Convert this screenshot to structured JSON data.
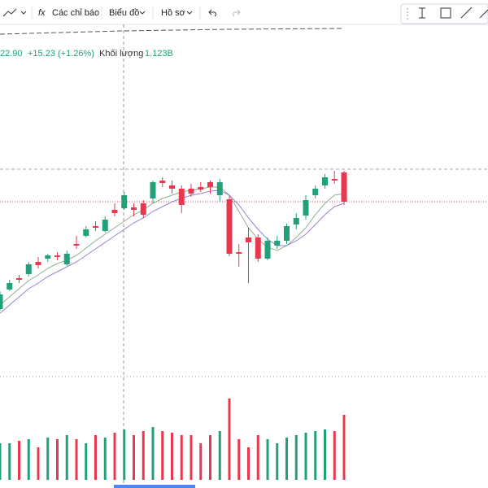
{
  "toolbar": {
    "indicators": "Các chỉ báo",
    "chart": "Biểu đồ",
    "profile": "Hồ sơ"
  },
  "legend": {
    "price": "22.90",
    "change": "+15.23 (+1.26%)",
    "volume_label": "Khối lượng",
    "volume": "1.123B"
  },
  "chart_data": {
    "type": "candlestick",
    "ylim": [
      -65,
      370
    ],
    "up_color": "#22a07a",
    "down_color": "#e8384f",
    "open": [
      20,
      44,
      58,
      63,
      78,
      82,
      86,
      75,
      100,
      110,
      122,
      116,
      142,
      144,
      145,
      150,
      156,
      178,
      172,
      168,
      168,
      170,
      176,
      160,
      155,
      90,
      108,
      108,
      82,
      98,
      104,
      124,
      135,
      160,
      172,
      180,
      188
    ],
    "high": [
      42,
      56,
      62,
      78,
      84,
      88,
      90,
      92,
      110,
      122,
      128,
      134,
      150,
      164,
      150,
      154,
      178,
      182,
      178,
      172,
      174,
      176,
      178,
      180,
      160,
      100,
      120,
      112,
      108,
      110,
      125,
      138,
      160,
      172,
      186,
      190,
      190
    ],
    "low": [
      18,
      42,
      52,
      60,
      70,
      78,
      80,
      73,
      94,
      108,
      116,
      114,
      134,
      142,
      134,
      132,
      150,
      170,
      162,
      138,
      158,
      164,
      162,
      152,
      85,
      72,
      52,
      78,
      80,
      94,
      100,
      118,
      130,
      156,
      168,
      174,
      148
    ],
    "close": [
      38,
      52,
      56,
      75,
      74,
      86,
      84,
      88,
      98,
      118,
      120,
      130,
      138,
      160,
      142,
      136,
      176,
      175,
      168,
      148,
      162,
      167,
      170,
      176,
      88,
      88,
      102,
      82,
      104,
      104,
      122,
      132,
      154,
      168,
      182,
      178,
      152
    ],
    "ma_series": [
      {
        "color": "#8fae8f",
        "values": [
          25,
          35,
          45,
          55,
          62,
          70,
          76,
          80,
          86,
          95,
          104,
          112,
          120,
          128,
          136,
          142,
          150,
          156,
          160,
          164,
          166,
          168,
          170,
          170,
          160,
          140,
          120,
          106,
          96,
          92,
          98,
          108,
          120,
          136,
          150,
          160,
          162
        ]
      },
      {
        "color": "#9c7fd0",
        "values": [
          15,
          25,
          35,
          45,
          52,
          60,
          66,
          72,
          78,
          86,
          94,
          102,
          110,
          118,
          126,
          132,
          140,
          146,
          152,
          156,
          160,
          162,
          165,
          166,
          160,
          148,
          132,
          118,
          106,
          98,
          98,
          104,
          112,
          124,
          136,
          146,
          150
        ]
      }
    ],
    "volume": {
      "ylim": [
        0,
        120
      ],
      "values": [
        45,
        45,
        48,
        50,
        40,
        52,
        50,
        55,
        50,
        45,
        55,
        52,
        58,
        62,
        55,
        60,
        65,
        60,
        58,
        55,
        55,
        45,
        55,
        60,
        100,
        50,
        40,
        55,
        50,
        45,
        52,
        55,
        58,
        60,
        62,
        60,
        80
      ]
    }
  }
}
